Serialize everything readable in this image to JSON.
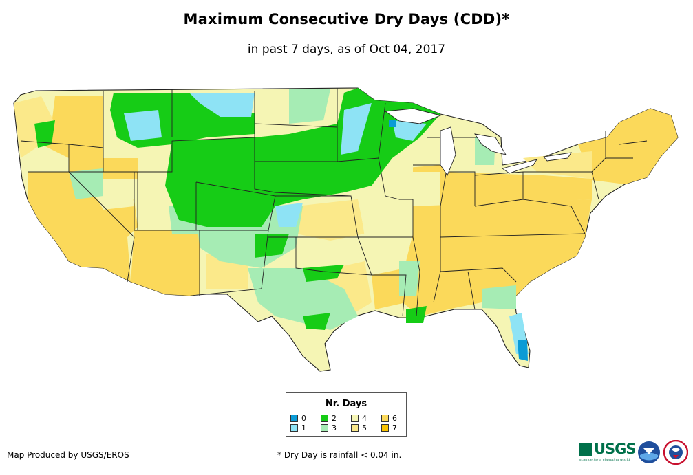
{
  "title": "Maximum Consecutive Dry Days (CDD)*",
  "subtitle": "in past 7 days, as of Oct 04, 2017",
  "legend": {
    "title": "Nr. Days",
    "items": [
      {
        "label": "0",
        "color": "#0a9bd6"
      },
      {
        "label": "1",
        "color": "#8ee3f5"
      },
      {
        "label": "2",
        "color": "#16cc16"
      },
      {
        "label": "3",
        "color": "#a6ecb4"
      },
      {
        "label": "4",
        "color": "#f5f5b4"
      },
      {
        "label": "5",
        "color": "#fbe98a"
      },
      {
        "label": "6",
        "color": "#fbd95a"
      },
      {
        "label": "7",
        "color": "#f9c300"
      }
    ]
  },
  "footer": {
    "producer": "Map Produced by USGS/EROS",
    "note": "* Dry Day is rainfall < 0.04 in."
  },
  "logos": {
    "usgs_text": "USGS",
    "usgs_tagline": "science for a changing world",
    "noaa": "noaa-logo",
    "nws": "nws-logo"
  }
}
